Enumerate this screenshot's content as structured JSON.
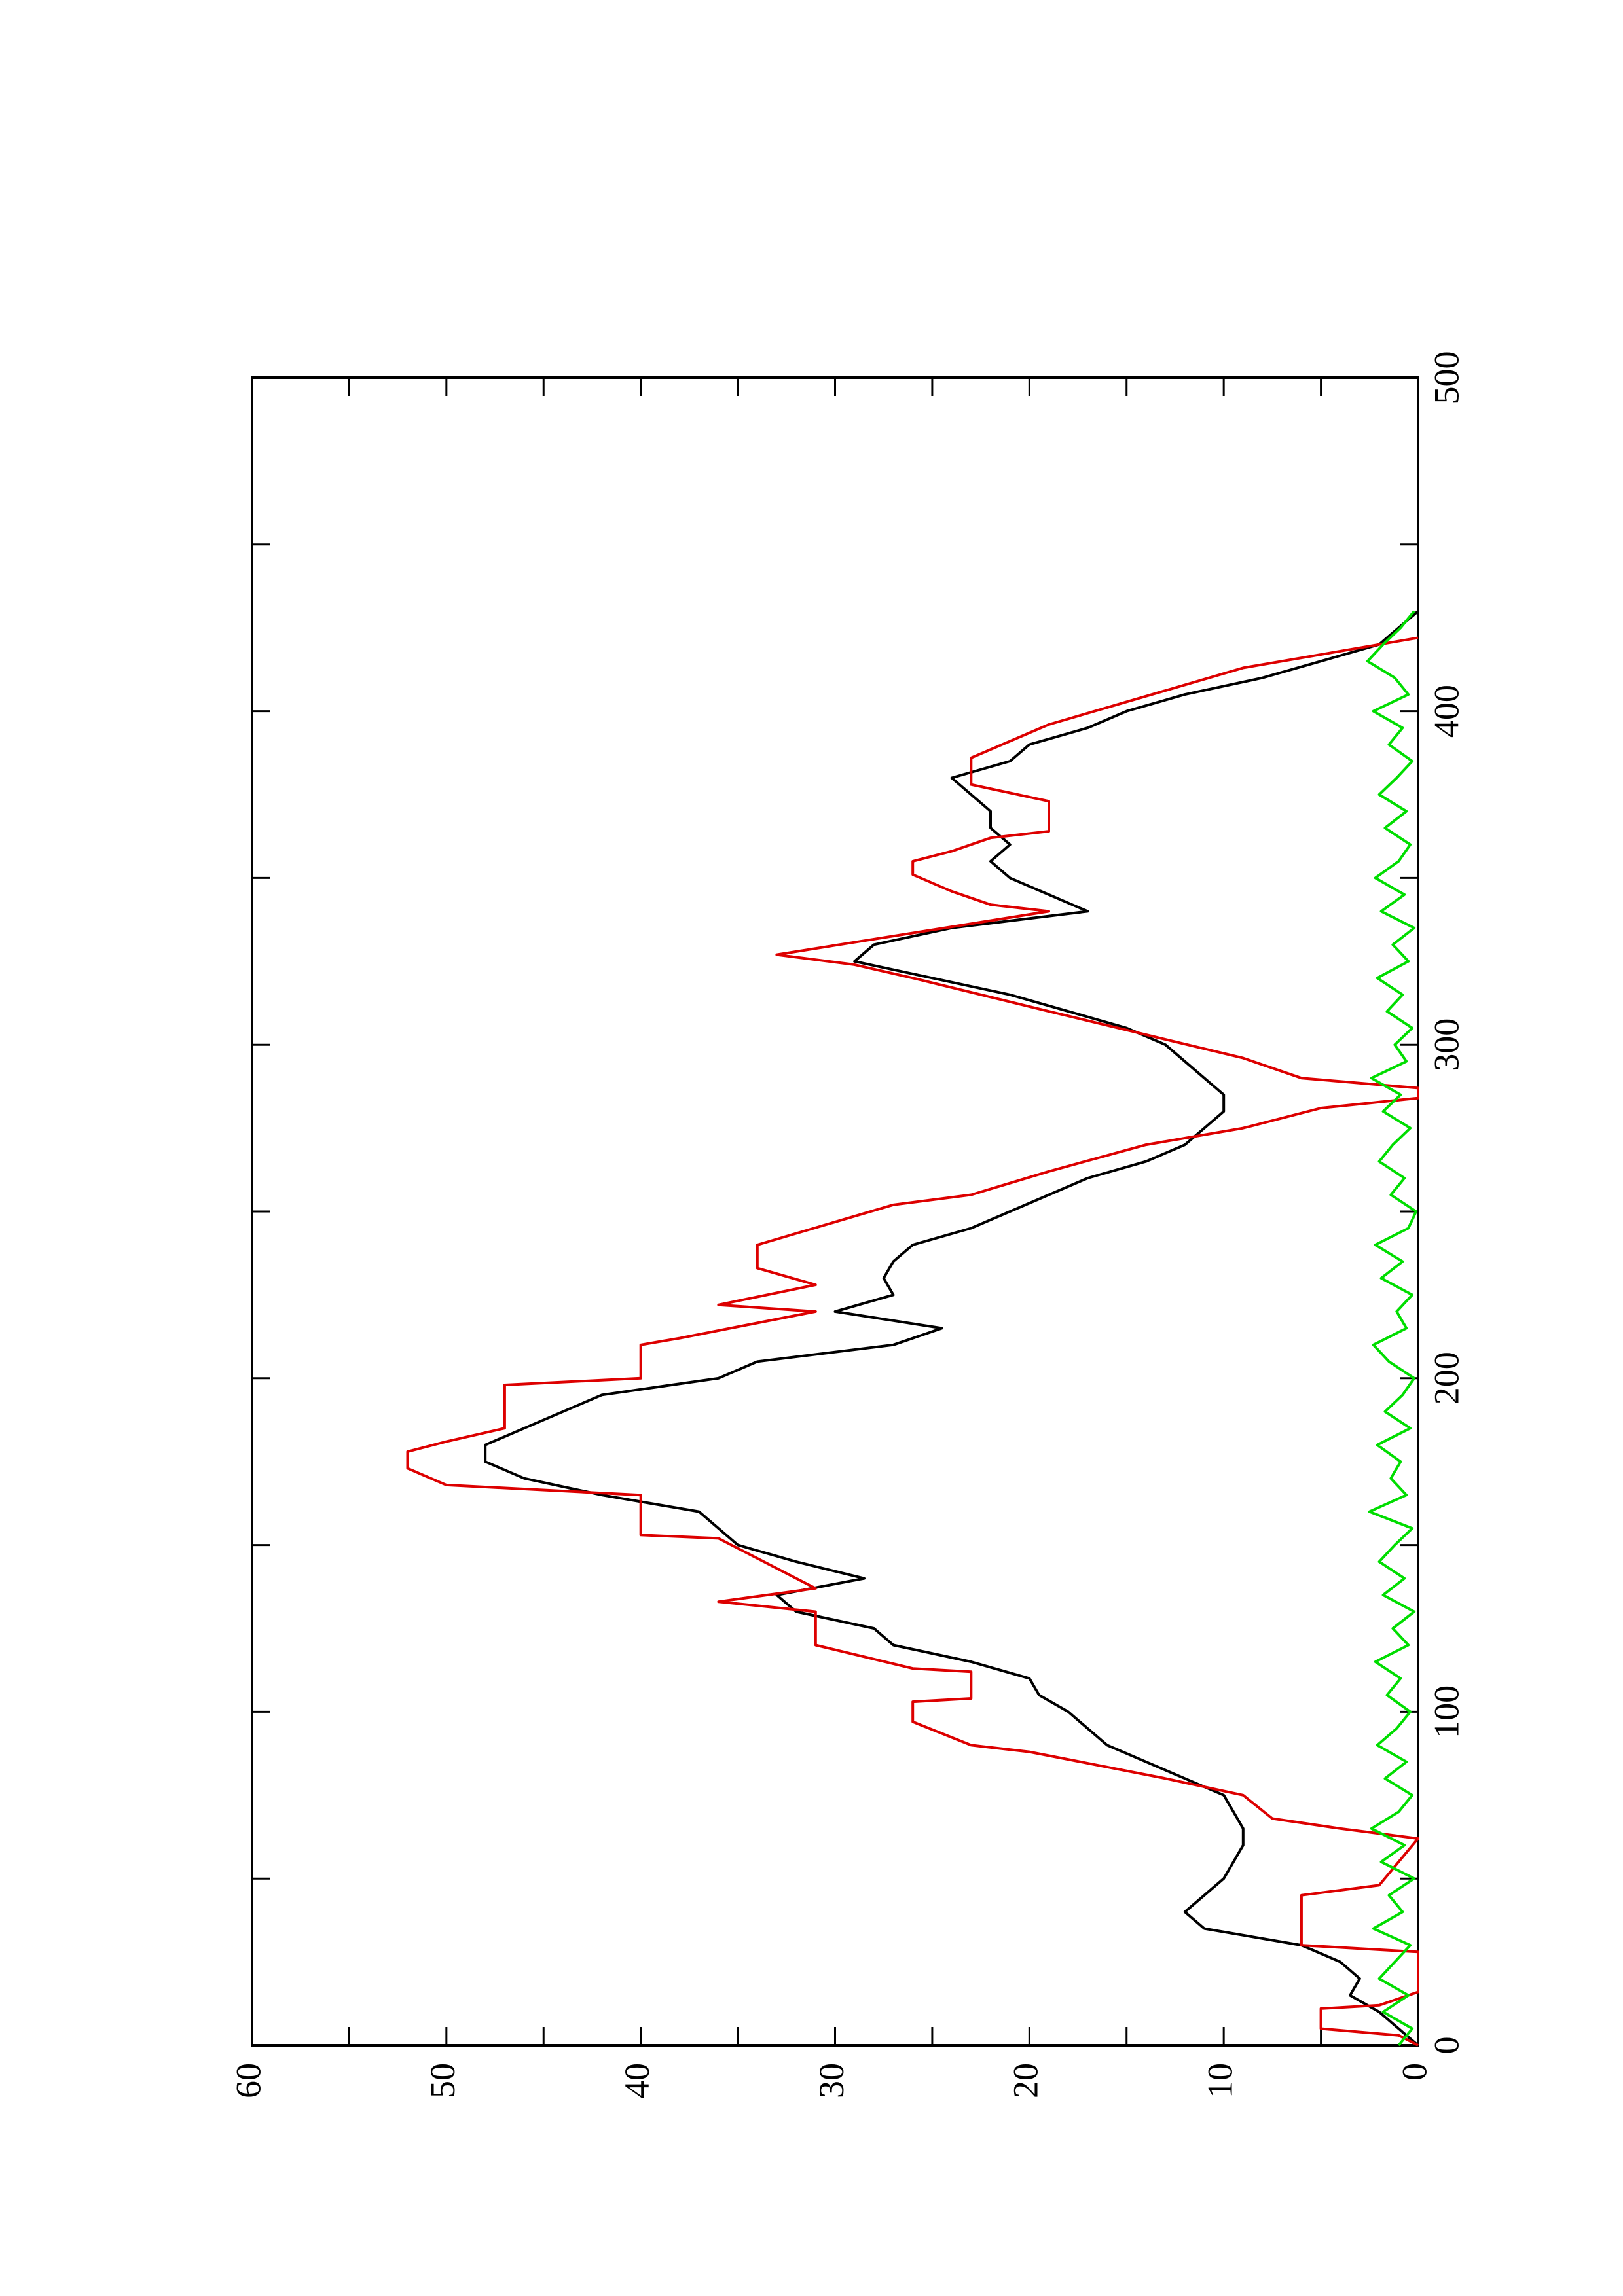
{
  "chart_data": {
    "type": "line",
    "xlim": [
      0,
      500
    ],
    "xticks": [
      0,
      100,
      200,
      300,
      400,
      500
    ],
    "xminorticks": [
      50,
      150,
      250,
      350,
      450
    ],
    "ylim": [
      0,
      60
    ],
    "yticks": [
      0,
      10,
      20,
      30,
      40,
      50,
      60
    ],
    "yminorticks": [
      5,
      15,
      25,
      35,
      45,
      55
    ],
    "x": [
      0,
      5,
      10,
      15,
      20,
      25,
      30,
      35,
      40,
      45,
      50,
      55,
      60,
      65,
      70,
      75,
      80,
      85,
      90,
      95,
      100,
      105,
      110,
      115,
      120,
      125,
      130,
      135,
      140,
      145,
      150,
      155,
      160,
      165,
      170,
      175,
      180,
      185,
      190,
      195,
      200,
      205,
      210,
      215,
      220,
      225,
      230,
      235,
      240,
      245,
      250,
      255,
      260,
      265,
      270,
      275,
      280,
      285,
      290,
      295,
      300,
      305,
      310,
      315,
      320,
      325,
      330,
      335,
      340,
      345,
      350,
      355,
      360,
      365,
      370,
      375,
      380,
      385,
      390,
      395,
      400,
      405,
      410,
      415,
      420,
      425,
      430
    ],
    "series": [
      {
        "color": "#000000",
        "values": [
          0,
          1,
          2,
          3.5,
          3,
          4,
          6,
          11,
          12,
          11,
          10,
          9.5,
          9,
          9,
          9.5,
          10,
          12,
          14,
          16,
          17,
          18,
          19.5,
          20,
          23,
          27,
          28,
          32,
          33,
          28.5,
          32,
          35,
          36,
          37,
          42,
          46,
          48,
          48,
          46,
          44,
          42,
          36,
          34,
          27,
          24.5,
          30,
          27,
          27.5,
          27,
          26,
          23,
          21,
          19,
          17,
          14,
          12,
          11,
          10,
          10,
          11,
          12,
          13,
          15,
          18,
          21,
          25,
          29,
          28,
          24,
          17,
          19,
          21,
          22,
          21,
          22,
          22,
          23,
          24,
          21,
          20,
          17,
          15,
          12,
          8,
          5,
          2,
          1,
          0
        ]
      },
      {
        "color": "#dd0000",
        "x": [
          0,
          3,
          5,
          11,
          12,
          16,
          28,
          30,
          45,
          48,
          62,
          65,
          68,
          75,
          80,
          88,
          90,
          97,
          103,
          104,
          112,
          113,
          120,
          130,
          133,
          137,
          152,
          153,
          165,
          168,
          173,
          178,
          181,
          185,
          198,
          200,
          210,
          212,
          220,
          222,
          228,
          233,
          240,
          252,
          255,
          262,
          270,
          275,
          281,
          284,
          287,
          290,
          296,
          310,
          320,
          324,
          327,
          340,
          342,
          346,
          351,
          355,
          358,
          362,
          364,
          373,
          378,
          386,
          396,
          413,
          422
        ],
        "values": [
          0,
          1,
          5,
          5,
          2,
          0,
          0,
          6,
          6,
          2,
          0,
          4,
          7.5,
          9,
          13,
          20,
          23,
          26,
          26,
          23,
          23,
          26,
          31,
          31,
          36,
          31,
          36,
          40,
          40,
          50,
          52,
          52,
          50,
          47,
          47,
          40,
          40,
          38,
          31,
          36,
          31,
          34,
          34,
          27,
          23,
          19,
          14,
          9,
          5,
          0,
          0,
          6,
          9,
          19,
          26,
          29,
          33,
          19,
          22,
          24,
          26,
          26,
          24,
          22,
          19,
          19,
          23,
          23,
          19,
          9,
          0
        ]
      },
      {
        "color": "#00dd00",
        "values": [
          1,
          0.3,
          1.8,
          0.5,
          2,
          1.2,
          0.4,
          2.3,
          0.8,
          1.5,
          0.2,
          1.9,
          0.7,
          2.4,
          1,
          0.3,
          1.7,
          0.6,
          2.1,
          1.1,
          0.4,
          1.6,
          0.9,
          2.2,
          0.5,
          1.3,
          0.2,
          1.8,
          0.7,
          2,
          1.2,
          0.3,
          2.5,
          0.6,
          1.4,
          0.9,
          2.1,
          0.4,
          1.7,
          0.8,
          0.2,
          1.5,
          2.3,
          0.6,
          1.1,
          0.3,
          1.9,
          0.8,
          2.2,
          0.5,
          0.1,
          1.4,
          0.7,
          2,
          1.3,
          0.4,
          1.8,
          0.9,
          2.4,
          0.6,
          1.2,
          0.3,
          1.6,
          0.8,
          2.1,
          0.5,
          1.3,
          0.2,
          1.9,
          0.7,
          2.2,
          1,
          0.4,
          1.7,
          0.6,
          2,
          1.1,
          0.3,
          1.5,
          0.8,
          2.3,
          0.5,
          1.2,
          2.6,
          1.8,
          0.9,
          0.2
        ]
      }
    ]
  }
}
